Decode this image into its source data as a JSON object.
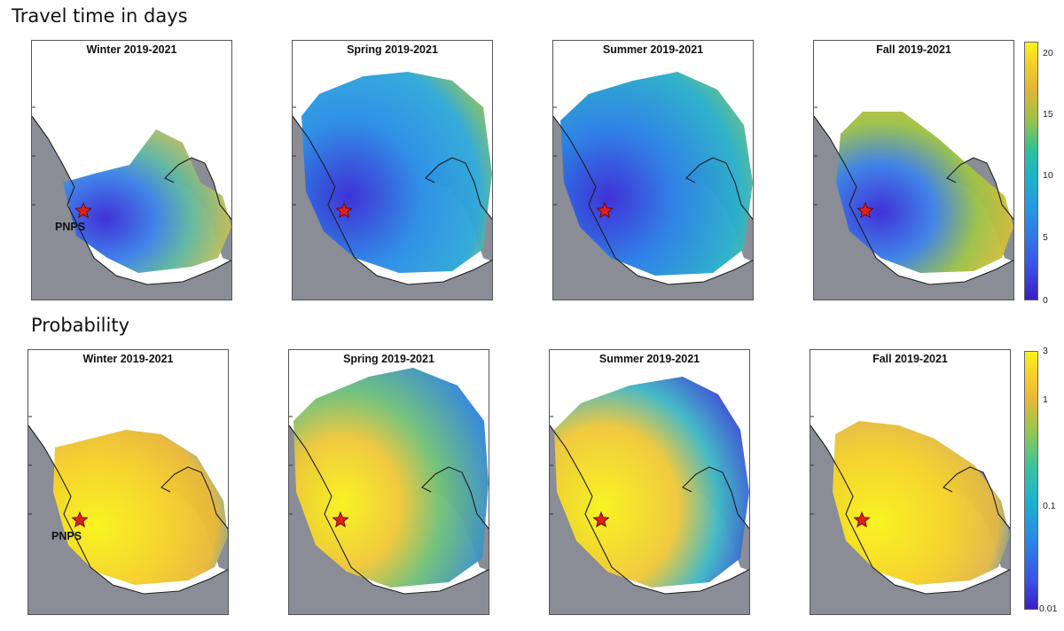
{
  "sections": {
    "travel": {
      "title": "Travel time in days"
    },
    "probability": {
      "title": "Probability"
    }
  },
  "panels": {
    "travel": [
      {
        "title": "Winter 2019-2021",
        "marker_label": "PNPS"
      },
      {
        "title": "Spring 2019-2021"
      },
      {
        "title": "Summer 2019-2021"
      },
      {
        "title": "Fall 2019-2021"
      }
    ],
    "probability": [
      {
        "title": "Winter 2019-2021",
        "marker_label": "PNPS"
      },
      {
        "title": "Spring 2019-2021"
      },
      {
        "title": "Summer 2019-2021"
      },
      {
        "title": "Fall 2019-2021"
      }
    ]
  },
  "colorbars": {
    "travel": {
      "ticks": [
        "20",
        "15",
        "10",
        "5",
        "0"
      ],
      "range": [
        0,
        21
      ],
      "scale": "linear"
    },
    "probability": {
      "ticks": [
        "3",
        "1",
        "0.1",
        "0.01"
      ],
      "range": [
        0.01,
        3
      ],
      "scale": "log"
    }
  },
  "colors": {
    "land": "#8a8d96",
    "star": "#e0201c",
    "colormap_low": "#3a1fbf",
    "colormap_mid": "#22b3c8",
    "colormap_high": "#f5f01e"
  },
  "marker": {
    "icon": "star-icon"
  }
}
